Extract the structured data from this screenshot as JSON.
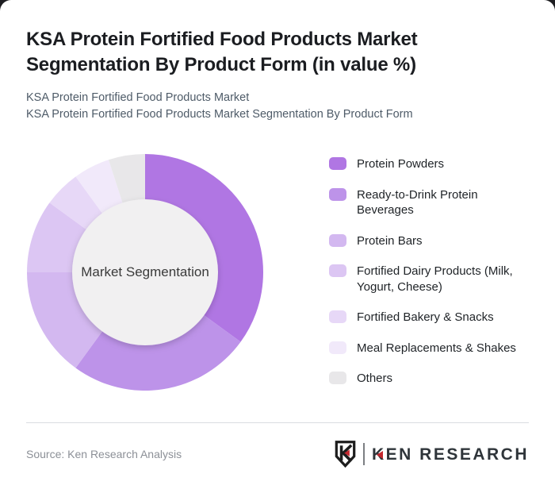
{
  "page": {
    "title": "KSA Protein Fortified Food Products Market Segmentation By Product Form (in value %)",
    "subtitle_line1": "KSA Protein Fortified Food Products Market",
    "subtitle_line2": "KSA Protein Fortified Food Products Market Segmentation By Product Form"
  },
  "chart_data": {
    "type": "pie",
    "subtype": "donut",
    "title": "KSA Protein Fortified Food Products Market Segmentation By Product Form (in value %)",
    "unit": "value %",
    "center_label": "Market Segmentation",
    "legend_position": "right",
    "start_angle_deg": 0,
    "direction": "clockwise",
    "hole_color": "#f1f0f1",
    "segments": [
      {
        "label": "Protein Powders",
        "value": 35,
        "color": "#b076e3"
      },
      {
        "label": "Ready-to-Drink Protein Beverages",
        "value": 25,
        "color": "#bd93e9"
      },
      {
        "label": "Protein Bars",
        "value": 15,
        "color": "#d3b8f0"
      },
      {
        "label": "Fortified Dairy Products (Milk, Yogurt, Cheese)",
        "value": 10,
        "color": "#dcc6f3"
      },
      {
        "label": "Fortified Bakery & Snacks",
        "value": 5,
        "color": "#e7d8f7"
      },
      {
        "label": "Meal Replacements & Shakes",
        "value": 5,
        "color": "#f1e9fa"
      },
      {
        "label": "Others",
        "value": 5,
        "color": "#e8e7e9"
      }
    ]
  },
  "footer": {
    "source": "Source: Ken Research Analysis",
    "logo_k": "K",
    "logo_rest": "EN RESEARCH",
    "logo_red": "#c3272e",
    "logo_dark": "#1d1d1d"
  }
}
